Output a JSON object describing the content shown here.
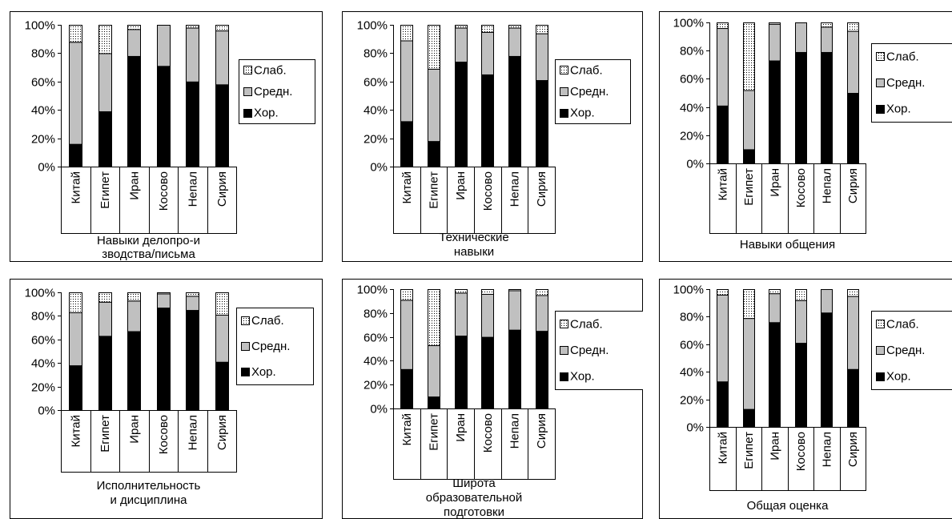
{
  "legend_labels": [
    "Слаб.",
    "Средн.",
    "Хор."
  ],
  "colors": {
    "good": "#000000",
    "medium": "#c0c0c0",
    "weak": "#ffffff",
    "weak_dots": "#000000",
    "frame": "#000000"
  },
  "chart_data": [
    {
      "type": "bar",
      "stacked": true,
      "title": "",
      "xlabel": "Навыки делопро-изводства/письма",
      "ylabel": "",
      "ylim": [
        0,
        100
      ],
      "yticks": [
        "0%",
        "20%",
        "40%",
        "60%",
        "80%",
        "100%"
      ],
      "legend": "right",
      "categories": [
        "Китай",
        "Египет",
        "Иран",
        "Косово",
        "Непал",
        "Сирия"
      ],
      "series": [
        {
          "name": "Хор.",
          "values": [
            16,
            39,
            78,
            71,
            60,
            58
          ]
        },
        {
          "name": "Средн.",
          "values": [
            72,
            41,
            19,
            29,
            38,
            38
          ]
        },
        {
          "name": "Слаб.",
          "values": [
            12,
            20,
            3,
            0,
            2,
            4
          ]
        }
      ]
    },
    {
      "type": "bar",
      "stacked": true,
      "title": "",
      "xlabel": "Технические навыки",
      "ylabel": "",
      "ylim": [
        0,
        100
      ],
      "yticks": [
        "0%",
        "20%",
        "40%",
        "60%",
        "80%",
        "100%"
      ],
      "legend": "right",
      "categories": [
        "Китай",
        "Египет",
        "Иран",
        "Косово",
        "Непал",
        "Сирия"
      ],
      "series": [
        {
          "name": "Хор.",
          "values": [
            32,
            18,
            74,
            65,
            78,
            61
          ]
        },
        {
          "name": "Средн.",
          "values": [
            57,
            51,
            24,
            30,
            20,
            33
          ]
        },
        {
          "name": "Слаб.",
          "values": [
            11,
            31,
            2,
            5,
            2,
            6
          ]
        }
      ]
    },
    {
      "type": "bar",
      "stacked": true,
      "title": "",
      "xlabel": "Навыки общения",
      "ylabel": "",
      "ylim": [
        0,
        100
      ],
      "yticks": [
        "0%",
        "20%",
        "40%",
        "60%",
        "80%",
        "100%"
      ],
      "legend": "right",
      "categories": [
        "Китай",
        "Египет",
        "Иран",
        "Косово",
        "Непал",
        "Сирия"
      ],
      "series": [
        {
          "name": "Хор.",
          "values": [
            41,
            10,
            73,
            79,
            79,
            50
          ]
        },
        {
          "name": "Средн.",
          "values": [
            55,
            42,
            26,
            21,
            18,
            44
          ]
        },
        {
          "name": "Слаб.",
          "values": [
            4,
            48,
            1,
            0,
            3,
            6
          ]
        }
      ]
    },
    {
      "type": "bar",
      "stacked": true,
      "title": "",
      "xlabel": "Исполнительность и дисциплина",
      "ylabel": "",
      "ylim": [
        0,
        100
      ],
      "yticks": [
        "0%",
        "20%",
        "40%",
        "60%",
        "80%",
        "100%"
      ],
      "legend": "right",
      "categories": [
        "Китай",
        "Египет",
        "Иран",
        "Косово",
        "Непал",
        "Сирия"
      ],
      "series": [
        {
          "name": "Хор.",
          "values": [
            38,
            63,
            67,
            87,
            85,
            41
          ]
        },
        {
          "name": "Средн.",
          "values": [
            45,
            29,
            26,
            12,
            12,
            40
          ]
        },
        {
          "name": "Слаб.",
          "values": [
            17,
            8,
            7,
            1,
            3,
            19
          ]
        }
      ]
    },
    {
      "type": "bar",
      "stacked": true,
      "title": "",
      "xlabel": "Широта образовательной подготовки",
      "ylabel": "",
      "ylim": [
        0,
        100
      ],
      "yticks": [
        "0%",
        "20%",
        "40%",
        "60%",
        "80%",
        "100%"
      ],
      "legend": "right",
      "categories": [
        "Китай",
        "Египет",
        "Иран",
        "Косово",
        "Непал",
        "Сирия"
      ],
      "series": [
        {
          "name": "Хор.",
          "values": [
            33,
            10,
            61,
            60,
            66,
            65
          ]
        },
        {
          "name": "Средн.",
          "values": [
            58,
            43,
            36,
            36,
            33,
            30
          ]
        },
        {
          "name": "Слаб.",
          "values": [
            9,
            47,
            3,
            4,
            1,
            5
          ]
        }
      ]
    },
    {
      "type": "bar",
      "stacked": true,
      "title": "",
      "xlabel": "Общая оценка",
      "ylabel": "",
      "ylim": [
        0,
        100
      ],
      "yticks": [
        "0%",
        "20%",
        "40%",
        "60%",
        "80%",
        "100%"
      ],
      "legend": "right",
      "categories": [
        "Китай",
        "Египет",
        "Иран",
        "Косово",
        "Непал",
        "Сирия"
      ],
      "series": [
        {
          "name": "Хор.",
          "values": [
            33,
            13,
            76,
            61,
            83,
            42
          ]
        },
        {
          "name": "Средн.",
          "values": [
            63,
            66,
            21,
            31,
            17,
            53
          ]
        },
        {
          "name": "Слаб.",
          "values": [
            4,
            21,
            3,
            8,
            0,
            5
          ]
        }
      ]
    }
  ]
}
